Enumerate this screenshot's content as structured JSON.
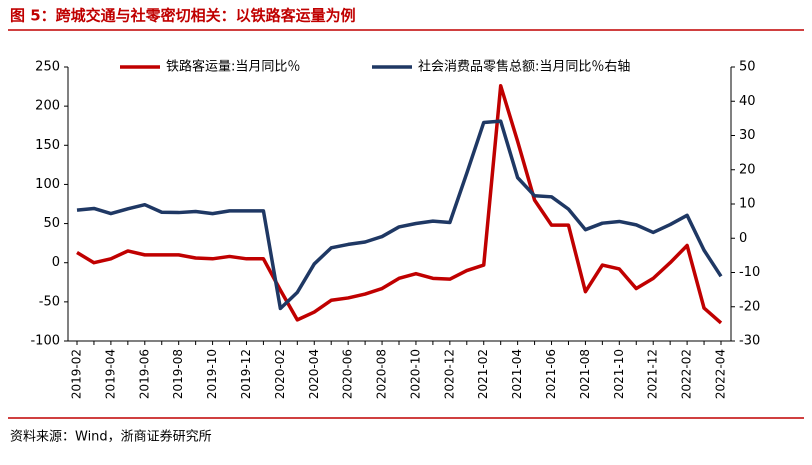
{
  "chart_data": {
    "type": "line",
    "title": "图 5：跨城交通与社零密切相关：以铁路客运量为例",
    "source": "资料来源：Wind，浙商证券研究所",
    "categories": [
      "2019-02",
      null,
      "2019-04",
      null,
      "2019-06",
      null,
      "2019-08",
      null,
      "2019-10",
      null,
      "2019-12",
      null,
      "2020-02",
      null,
      "2020-04",
      null,
      "2020-06",
      null,
      "2020-08",
      null,
      "2020-10",
      null,
      "2020-12",
      null,
      "2021-02",
      null,
      "2021-04",
      null,
      "2021-06",
      null,
      "2021-08",
      null,
      "2021-10",
      null,
      "2021-12",
      null,
      "2022-02",
      null,
      "2022-04"
    ],
    "series": [
      {
        "name": "铁路客运量:当月同比％",
        "color": "#c00000",
        "axis": "y",
        "values": [
          13,
          0,
          5,
          15,
          10,
          10,
          10,
          6,
          5,
          8,
          5,
          5,
          -35,
          -73,
          -63,
          -48,
          -45,
          -40,
          -33,
          -20,
          -14,
          -20,
          -21,
          -10,
          -3,
          226,
          155,
          80,
          48,
          48,
          -37,
          -3,
          -8,
          -33,
          -20,
          0,
          22,
          -58,
          -77
        ]
      },
      {
        "name": "社会消费品零售总额:当月同比％右轴",
        "color": "#1f3864",
        "axis": "y2",
        "values": [
          8.2,
          8.7,
          7.2,
          8.6,
          9.8,
          7.6,
          7.5,
          7.8,
          7.2,
          8.0,
          8.0,
          8.0,
          -20.5,
          -15.8,
          -7.5,
          -2.8,
          -1.8,
          -1.1,
          0.5,
          3.3,
          4.3,
          5.0,
          4.6,
          19,
          33.8,
          34.2,
          17.7,
          12.4,
          12.1,
          8.5,
          2.5,
          4.4,
          4.9,
          3.9,
          1.7,
          4,
          6.7,
          -3.5,
          -11.1
        ]
      }
    ],
    "ylim": [
      -100,
      250
    ],
    "yticks": [
      -100,
      -50,
      0,
      50,
      100,
      150,
      200,
      250
    ],
    "y2lim": [
      -30,
      50
    ],
    "y2ticks": [
      -30,
      -20,
      -10,
      0,
      10,
      20,
      30,
      40,
      50
    ],
    "legend": "top",
    "grid": false
  }
}
